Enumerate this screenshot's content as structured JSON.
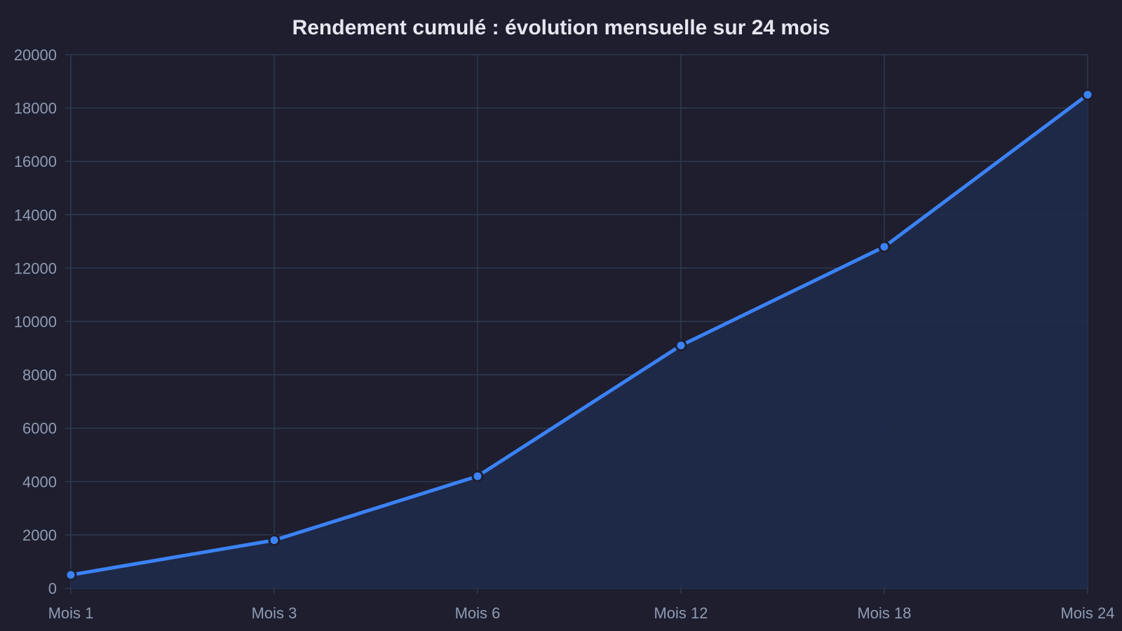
{
  "chart_data": {
    "type": "area",
    "title": "Rendement cumulé : évolution mensuelle sur 24 mois",
    "xlabel": "",
    "ylabel": "",
    "categories": [
      "Mois 1",
      "Mois 3",
      "Mois 6",
      "Mois 12",
      "Mois 18",
      "Mois 24"
    ],
    "series": [
      {
        "values": [
          500,
          1800,
          4200,
          9100,
          12800,
          18500
        ]
      }
    ],
    "ylim": [
      0,
      20000
    ],
    "yticks": [
      0,
      2000,
      4000,
      6000,
      8000,
      10000,
      12000,
      14000,
      16000,
      18000,
      20000
    ],
    "grid": true,
    "legend": "none"
  },
  "colors": {
    "background": "#1e1e2e",
    "grid": "#2e3a4f",
    "line": "#3b82f6",
    "area_fill": "#1f2a4a",
    "marker_stroke": "#1e1e2e",
    "title": "#e6e6f0",
    "tick": "#8f9bb3"
  }
}
